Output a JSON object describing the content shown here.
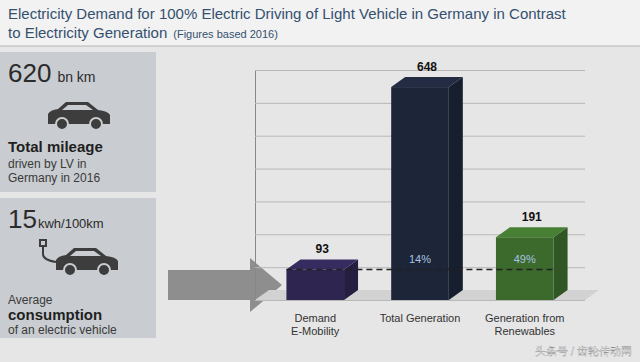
{
  "chart_data": {
    "type": "bar",
    "title": "Electricity Demand for 100% Electric Driving of Light Vehicle in Germany in Contrast to Electricity Generation",
    "subtitle": "(Figures based 2016)",
    "categories": [
      "Demand E-Mobility",
      "Total Generation",
      "Generation from Renewables"
    ],
    "values": [
      93,
      648,
      191
    ],
    "colors": [
      "#2e2550",
      "#1d2538",
      "#3b6a2c"
    ],
    "ylim": [
      0,
      700
    ],
    "yticks": [
      0,
      100,
      200,
      300,
      400,
      500,
      600,
      700
    ],
    "grid": true,
    "tick_labels": false,
    "data_labels": true,
    "share_values": [
      null,
      14,
      49
    ],
    "share_labels": [
      null,
      "14%",
      "49%"
    ],
    "annotations": [
      {
        "value": 620,
        "unit": "bn km",
        "lines": [
          "Total mileage",
          "driven by LV in",
          "Germany in 2016"
        ]
      },
      {
        "value": 15,
        "unit": "kwh/100km",
        "lines": [
          "Average",
          "consumption",
          "of an electric vehicle"
        ]
      }
    ],
    "watermark": "头条号 / 齿轮传动网"
  }
}
